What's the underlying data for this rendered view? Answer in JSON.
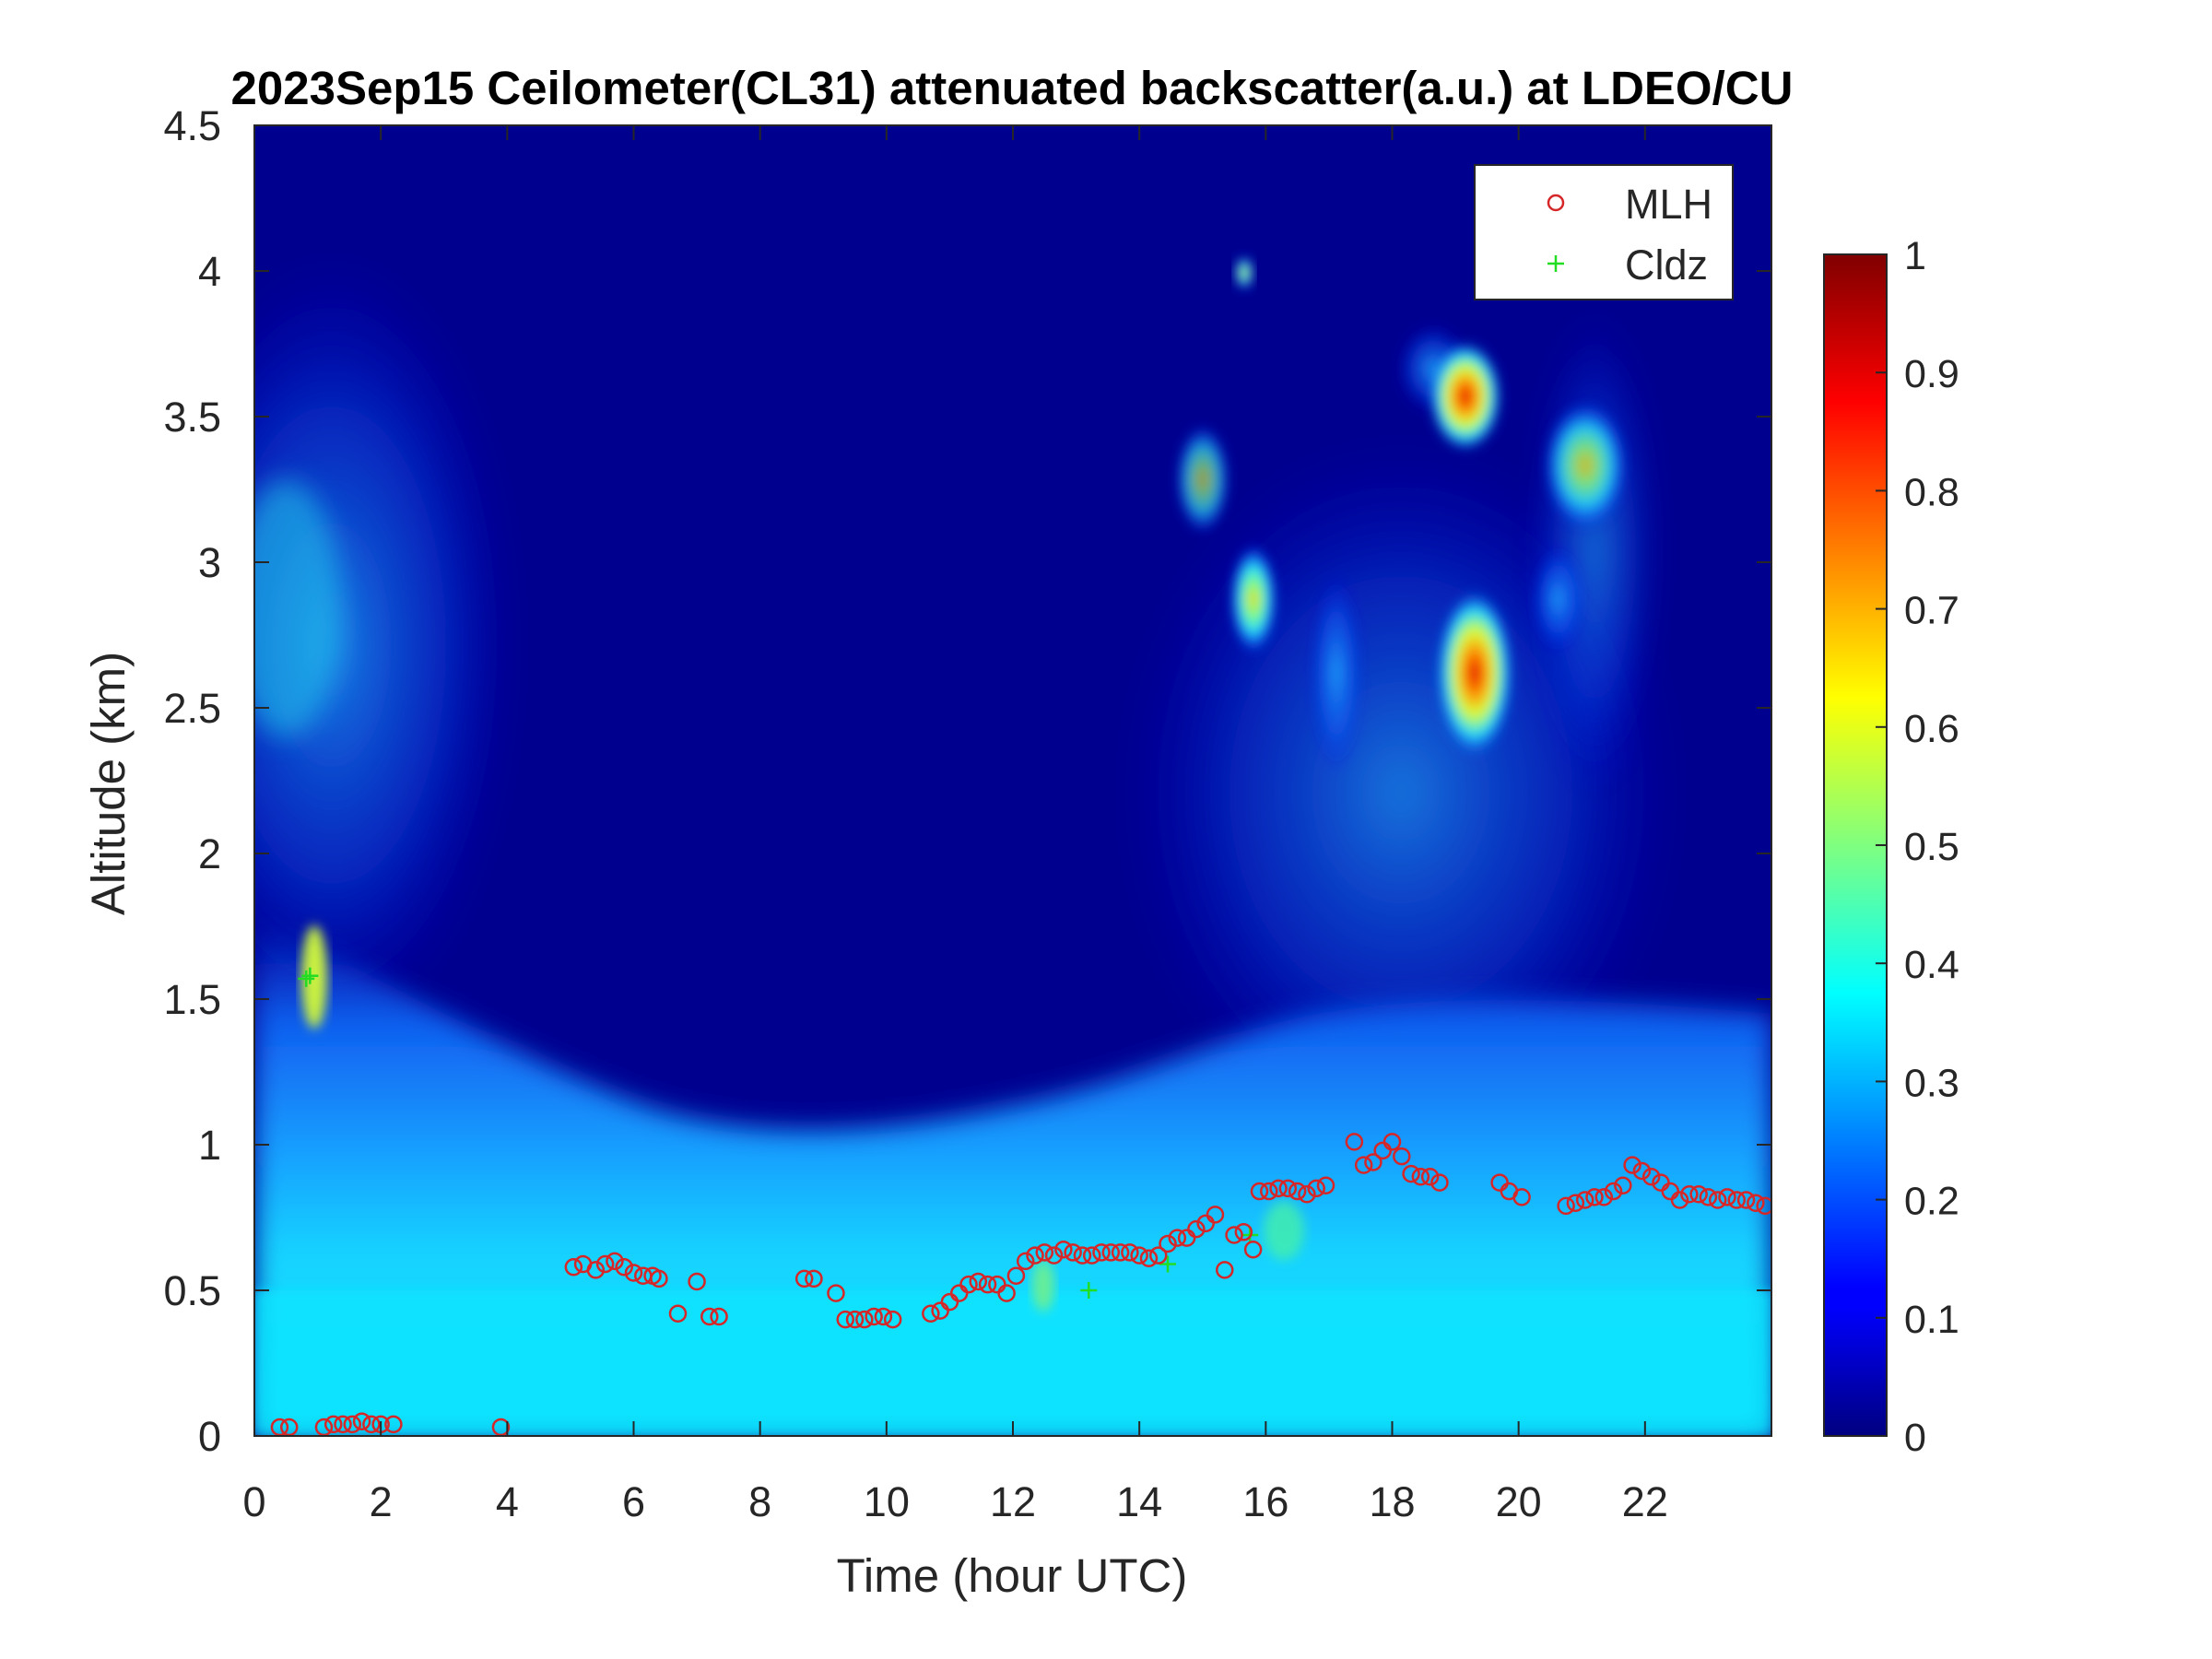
{
  "chart_data": {
    "type": "heatmap",
    "title": "2023Sep15 Ceilometer(CL31) attenuated backscatter(a.u.) at LDEO/CU",
    "xlabel": "Time (hour UTC)",
    "ylabel": "Altitude (km)",
    "xlim": [
      0,
      24
    ],
    "ylim": [
      0,
      4.5
    ],
    "x_ticks": [
      "0",
      "2",
      "4",
      "6",
      "8",
      "10",
      "12",
      "14",
      "16",
      "18",
      "20",
      "22"
    ],
    "y_ticks": [
      "0",
      "0.5",
      "1",
      "1.5",
      "2",
      "2.5",
      "3",
      "3.5",
      "4",
      "4.5"
    ],
    "colorbar": {
      "colormap": "jet",
      "range": [
        0,
        1
      ],
      "ticks": [
        "0",
        "0.1",
        "0.2",
        "0.3",
        "0.4",
        "0.5",
        "0.6",
        "0.7",
        "0.8",
        "0.9",
        "1"
      ]
    },
    "legend": {
      "position": "top-right",
      "entries": [
        {
          "name": "MLH",
          "marker": "circle",
          "color": "#d62728"
        },
        {
          "name": "Cldz",
          "marker": "plus",
          "color": "#22dd22"
        }
      ]
    },
    "series": [
      {
        "name": "MLH",
        "x": [
          0.4,
          0.55,
          1.1,
          1.25,
          1.4,
          1.55,
          1.7,
          1.85,
          2.0,
          2.2,
          3.9,
          5.05,
          5.2,
          5.4,
          5.55,
          5.7,
          5.85,
          6.0,
          6.15,
          6.3,
          6.4,
          6.7,
          7.0,
          7.2,
          7.35,
          8.7,
          8.85,
          9.2,
          9.35,
          9.5,
          9.65,
          9.8,
          9.95,
          10.1,
          10.7,
          10.85,
          11.0,
          11.15,
          11.3,
          11.45,
          11.6,
          11.75,
          11.9,
          12.05,
          12.2,
          12.35,
          12.5,
          12.65,
          12.8,
          12.95,
          13.1,
          13.25,
          13.4,
          13.55,
          13.7,
          13.85,
          14.0,
          14.15,
          14.3,
          14.45,
          14.6,
          14.75,
          14.9,
          15.05,
          15.2,
          15.35,
          15.5,
          15.65,
          15.8,
          15.9,
          16.05,
          16.2,
          16.35,
          16.5,
          16.65,
          16.8,
          16.95,
          17.4,
          17.55,
          17.7,
          17.85,
          18.0,
          18.15,
          18.3,
          18.45,
          18.6,
          18.75,
          19.7,
          19.85,
          20.05,
          20.75,
          20.9,
          21.05,
          21.2,
          21.35,
          21.5,
          21.65,
          21.8,
          21.95,
          22.1,
          22.25,
          22.4,
          22.55,
          22.7,
          22.85,
          23.0,
          23.15,
          23.3,
          23.45,
          23.6,
          23.75,
          23.9
        ],
        "y": [
          0.03,
          0.03,
          0.03,
          0.04,
          0.04,
          0.04,
          0.05,
          0.04,
          0.04,
          0.04,
          0.03,
          0.58,
          0.59,
          0.57,
          0.59,
          0.6,
          0.58,
          0.56,
          0.55,
          0.55,
          0.54,
          0.42,
          0.53,
          0.41,
          0.41,
          0.54,
          0.54,
          0.49,
          0.4,
          0.4,
          0.4,
          0.41,
          0.41,
          0.4,
          0.42,
          0.43,
          0.46,
          0.49,
          0.52,
          0.53,
          0.52,
          0.52,
          0.49,
          0.55,
          0.6,
          0.62,
          0.63,
          0.62,
          0.64,
          0.63,
          0.62,
          0.62,
          0.63,
          0.63,
          0.63,
          0.63,
          0.62,
          0.61,
          0.62,
          0.66,
          0.68,
          0.68,
          0.71,
          0.73,
          0.76,
          0.57,
          0.69,
          0.7,
          0.64,
          0.84,
          0.84,
          0.85,
          0.85,
          0.84,
          0.83,
          0.85,
          0.86,
          1.01,
          0.93,
          0.94,
          0.98,
          1.01,
          0.96,
          0.9,
          0.89,
          0.89,
          0.87,
          0.87,
          0.84,
          0.82,
          0.79,
          0.8,
          0.81,
          0.82,
          0.82,
          0.84,
          0.86,
          0.93,
          0.91,
          0.89,
          0.87,
          0.84,
          0.81,
          0.83,
          0.83,
          0.82,
          0.81,
          0.82,
          0.81,
          0.81,
          0.8,
          0.79
        ]
      },
      {
        "name": "Cldz",
        "x": [
          0.82,
          0.88,
          13.2,
          14.45,
          15.75
        ],
        "y": [
          1.57,
          1.58,
          0.5,
          0.59,
          0.69
        ]
      }
    ],
    "grid": false
  }
}
